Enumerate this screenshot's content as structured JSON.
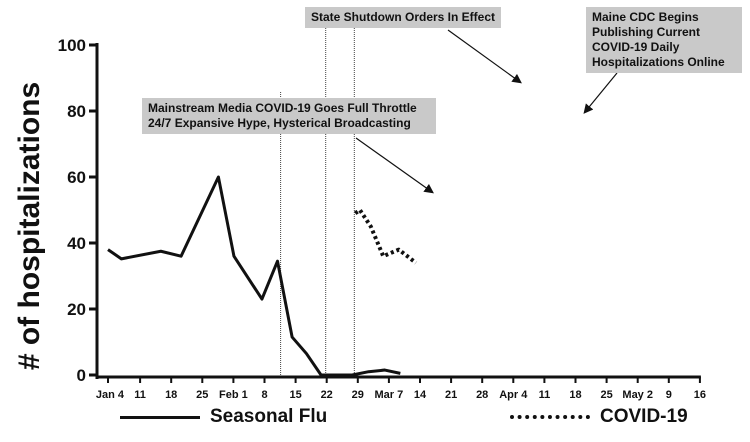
{
  "chart_data": {
    "type": "line",
    "ylabel": "# of hospitalizations",
    "xlabel": "",
    "title": "",
    "ylim": [
      0,
      100
    ],
    "yticks": [
      0,
      20,
      40,
      60,
      80,
      100
    ],
    "x_tick_labels": [
      "Jan 4",
      "11",
      "18",
      "25",
      "Feb 1",
      "8",
      "15",
      "22",
      "29",
      "Mar 7",
      "14",
      "21",
      "28",
      "Apr 4",
      "11",
      "18",
      "25",
      "May 2",
      "9",
      "16"
    ],
    "series": [
      {
        "name": "Seasonal Flu",
        "style": "solid",
        "color": "#111111",
        "points": [
          [
            0,
            38
          ],
          [
            0.43,
            35.2
          ],
          [
            1.7,
            37.5
          ],
          [
            2.35,
            36
          ],
          [
            3.55,
            60
          ],
          [
            4.05,
            36
          ],
          [
            4.95,
            23
          ],
          [
            5.45,
            34.5
          ],
          [
            5.92,
            11.5
          ],
          [
            6.38,
            6.5
          ],
          [
            6.85,
            0
          ],
          [
            7.35,
            0
          ],
          [
            7.85,
            0
          ],
          [
            8.38,
            1
          ],
          [
            8.9,
            1.5
          ],
          [
            9.4,
            0.5
          ]
        ]
      },
      {
        "name": "COVID-19",
        "style": "dotted",
        "color": "#111111",
        "points": [
          [
            7.95,
            49
          ],
          [
            8.1,
            50
          ],
          [
            8.45,
            45
          ],
          [
            8.85,
            36
          ],
          [
            9.35,
            38
          ],
          [
            9.9,
            34
          ]
        ]
      }
    ],
    "vlines": [
      {
        "x": 5.55,
        "style": "dotted"
      },
      {
        "x": 7.0,
        "style": "dotted"
      },
      {
        "x": 7.92,
        "style": "dotted"
      }
    ],
    "annotations": [
      {
        "text": "Mainstream Media COVID-19 Goes Full Throttle\n24/7 Expansive Hype, Hysterical Broadcasting"
      },
      {
        "text": "State Shutdown Orders In Effect"
      },
      {
        "text": "Maine CDC Begins\nPublishing Current\nCOVID-19 Daily\nHospitalizations Online"
      }
    ],
    "legend": {
      "placement": "bottom",
      "entries": [
        "Seasonal Flu",
        "COVID-19"
      ]
    }
  }
}
